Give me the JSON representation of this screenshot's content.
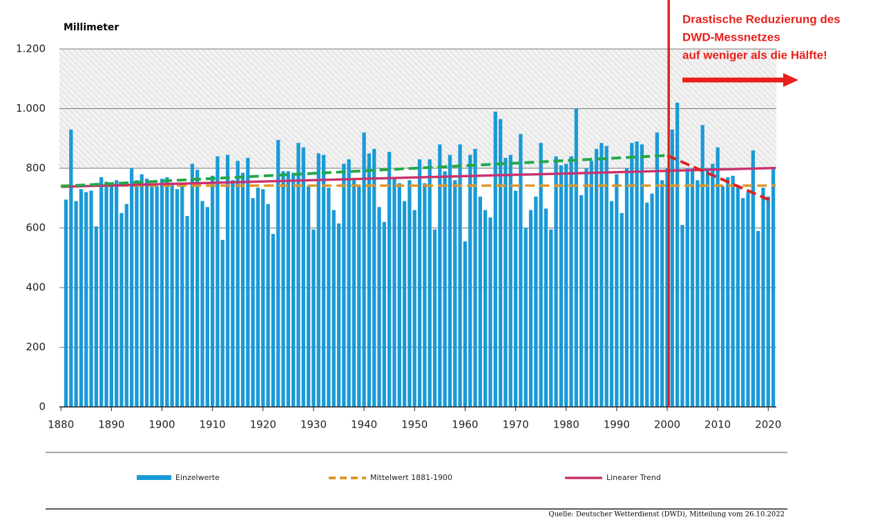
{
  "chart_data": {
    "type": "bar",
    "y_label": "Millimeter",
    "x": [
      1881,
      1882,
      1883,
      1884,
      1885,
      1886,
      1887,
      1888,
      1889,
      1890,
      1891,
      1892,
      1893,
      1894,
      1895,
      1896,
      1897,
      1898,
      1899,
      1900,
      1901,
      1902,
      1903,
      1904,
      1905,
      1906,
      1907,
      1908,
      1909,
      1910,
      1911,
      1912,
      1913,
      1914,
      1915,
      1916,
      1917,
      1918,
      1919,
      1920,
      1921,
      1922,
      1923,
      1924,
      1925,
      1926,
      1927,
      1928,
      1929,
      1930,
      1931,
      1932,
      1933,
      1934,
      1935,
      1936,
      1937,
      1938,
      1939,
      1940,
      1941,
      1942,
      1943,
      1944,
      1945,
      1946,
      1947,
      1948,
      1949,
      1950,
      1951,
      1952,
      1953,
      1954,
      1955,
      1956,
      1957,
      1958,
      1959,
      1960,
      1961,
      1962,
      1963,
      1964,
      1965,
      1966,
      1967,
      1968,
      1969,
      1970,
      1971,
      1972,
      1973,
      1974,
      1975,
      1976,
      1977,
      1978,
      1979,
      1980,
      1981,
      1982,
      1983,
      1984,
      1985,
      1986,
      1987,
      1988,
      1989,
      1990,
      1991,
      1992,
      1993,
      1994,
      1995,
      1996,
      1997,
      1998,
      1999,
      2000,
      2001,
      2002,
      2003,
      2004,
      2005,
      2006,
      2007,
      2008,
      2009,
      2010,
      2011,
      2012,
      2013,
      2014,
      2015,
      2016,
      2017,
      2018,
      2019,
      2020,
      2021
    ],
    "series": [
      {
        "name": "Einzelwerte",
        "color": "#1a9ad6",
        "values": [
          695,
          930,
          690,
          730,
          720,
          725,
          605,
          770,
          755,
          740,
          760,
          650,
          680,
          800,
          760,
          780,
          765,
          745,
          740,
          765,
          770,
          750,
          730,
          750,
          640,
          815,
          795,
          690,
          670,
          775,
          840,
          560,
          845,
          760,
          825,
          785,
          835,
          700,
          735,
          730,
          680,
          580,
          895,
          790,
          790,
          785,
          885,
          870,
          740,
          595,
          850,
          845,
          735,
          660,
          615,
          815,
          830,
          760,
          740,
          920,
          850,
          865,
          670,
          620,
          855,
          770,
          750,
          690,
          760,
          660,
          830,
          750,
          830,
          595,
          880,
          790,
          845,
          760,
          880,
          555,
          845,
          865,
          705,
          660,
          635,
          990,
          965,
          835,
          845,
          725,
          915,
          600,
          660,
          705,
          885,
          665,
          595,
          840,
          810,
          815,
          840,
          1000,
          710,
          800,
          825,
          865,
          885,
          875,
          690,
          780,
          650,
          800,
          885,
          890,
          880,
          685,
          715,
          920,
          760,
          800,
          930,
          1020,
          610,
          800,
          800,
          760,
          945,
          800,
          815,
          870,
          740,
          770,
          775,
          740,
          700,
          720,
          860,
          590,
          735,
          705,
          805
        ]
      },
      {
        "name": "Mittelwert 1881-1900",
        "color": "#e0962a",
        "dashed": true,
        "x": [
          1880,
          2021.5
        ],
        "values": [
          742,
          742
        ]
      },
      {
        "name": "Linearer Trend",
        "color": "#c8336e",
        "x": [
          1880,
          2021.5
        ],
        "values": [
          738,
          801
        ]
      }
    ],
    "annotation_lines": [
      {
        "color": "#22a84a",
        "dashed": true,
        "x": [
          1880,
          2000
        ],
        "values": [
          740,
          843
        ]
      },
      {
        "color": "#e0201a",
        "dashed": true,
        "x": [
          2000,
          2021
        ],
        "values": [
          843,
          688
        ]
      }
    ],
    "vline": {
      "x": 2000.3,
      "color": "#e8201a"
    },
    "annotation": [
      "Drastische Reduzierung des",
      "DWD-Messnetzes",
      "auf weniger als die Hälfte!"
    ],
    "source": "Quelle: Deutscher Wetterdienst (DWD), Mitteilung vom 26.10.2022",
    "xlim": [
      1879.7,
      2021.6
    ],
    "xticks": [
      1880,
      1890,
      1900,
      1910,
      1920,
      1930,
      1940,
      1950,
      1960,
      1970,
      1980,
      1990,
      2000,
      2010,
      2020
    ],
    "ylim": [
      0,
      1200
    ],
    "yticks": [
      0,
      200,
      400,
      600,
      800,
      {
        "value": 1000,
        "label": "1.000"
      },
      {
        "value": 1200,
        "label": "1.200"
      }
    ],
    "grid": true
  }
}
